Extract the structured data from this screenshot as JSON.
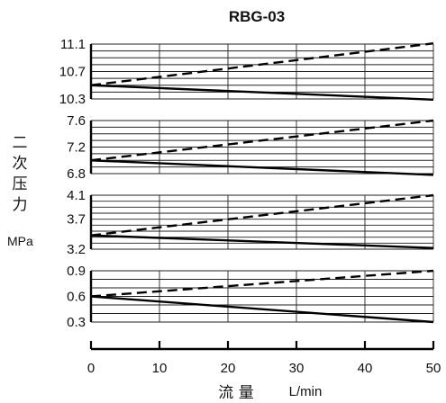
{
  "chart_data": {
    "type": "line",
    "title": "RBG-03",
    "ylabel": "二次压力",
    "yunit": "MPa",
    "xlabel": "流 量",
    "xunit": "L/min",
    "xlim": [
      0,
      50
    ],
    "xticks": [
      0,
      10,
      20,
      30,
      40,
      50
    ],
    "xtick_labels": [
      "0",
      "10",
      "20",
      "30",
      "40",
      "50"
    ],
    "grid": true,
    "panels": [
      {
        "ylim": [
          10.3,
          11.1
        ],
        "yticks": [
          10.3,
          10.7,
          11.1
        ],
        "ytick_labels": [
          "10.3",
          "10.7",
          "11.1"
        ],
        "series": [
          {
            "style": "dashed",
            "x": [
              0,
              50
            ],
            "y": [
              10.5,
              11.11
            ]
          },
          {
            "style": "solid",
            "x": [
              0,
              50
            ],
            "y": [
              10.5,
              10.29
            ]
          }
        ]
      },
      {
        "ylim": [
          6.8,
          7.6
        ],
        "yticks": [
          6.8,
          7.2,
          7.6
        ],
        "ytick_labels": [
          "6.8",
          "7.2",
          "7.6"
        ],
        "series": [
          {
            "style": "dashed",
            "x": [
              0,
              50
            ],
            "y": [
              7.0,
              7.6
            ]
          },
          {
            "style": "solid",
            "x": [
              0,
              50
            ],
            "y": [
              7.0,
              6.78
            ]
          }
        ]
      },
      {
        "ylim": [
          3.2,
          4.1
        ],
        "yticks": [
          3.2,
          3.7,
          4.1
        ],
        "ytick_labels": [
          "3.2",
          "3.7",
          "4.1"
        ],
        "series": [
          {
            "style": "dashed",
            "x": [
              0,
              50
            ],
            "y": [
              3.43,
              4.1
            ]
          },
          {
            "style": "solid",
            "x": [
              0,
              50
            ],
            "y": [
              3.43,
              3.22
            ]
          }
        ]
      },
      {
        "ylim": [
          0.3,
          0.9
        ],
        "yticks": [
          0.3,
          0.6,
          0.9
        ],
        "ytick_labels": [
          "0.3",
          "0.6",
          "0.9"
        ],
        "series": [
          {
            "style": "dashed",
            "x": [
              0,
              50
            ],
            "y": [
              0.6,
              0.9
            ]
          },
          {
            "style": "solid",
            "x": [
              0,
              50
            ],
            "y": [
              0.6,
              0.3
            ]
          }
        ]
      }
    ]
  }
}
